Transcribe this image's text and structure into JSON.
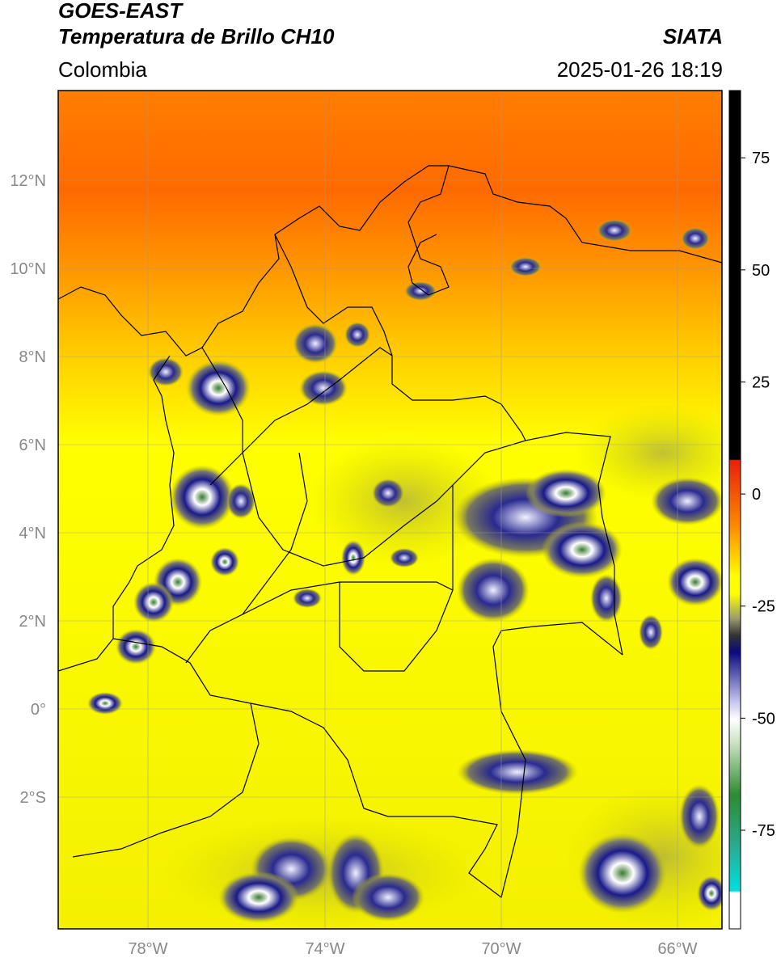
{
  "header": {
    "satellite": "GOES-EAST",
    "product": "Temperatura de Brillo CH10",
    "brand": "SIATA",
    "region": "Colombia",
    "timestamp": "2025-01-26 18:19"
  },
  "map": {
    "lat_labels": [
      "12°N",
      "10°N",
      "8°N",
      "6°N",
      "4°N",
      "2°N",
      "0°",
      "2°S"
    ],
    "lon_labels": [
      "78°W",
      "74°W",
      "70°W",
      "66°W"
    ],
    "extent": {
      "lon_min": -80,
      "lon_max": -65,
      "lat_min": -5.0,
      "lat_max": 14.0
    }
  },
  "colorbar": {
    "ticks": [
      "75",
      "50",
      "25",
      "0",
      "-25",
      "-50",
      "-75"
    ],
    "tick_values": [
      75,
      50,
      25,
      0,
      -25,
      -50,
      -75
    ],
    "range": [
      -97,
      90
    ],
    "colors": {
      "warm_top": "#000000",
      "red": "#e8200a",
      "orange": "#ff8a00",
      "yellow": "#ffff00",
      "gray": "#8a8a6a",
      "navy": "#0a0a80",
      "white": "#ffffff",
      "green": "#2e8b30",
      "cyan": "#00e0e0"
    }
  }
}
